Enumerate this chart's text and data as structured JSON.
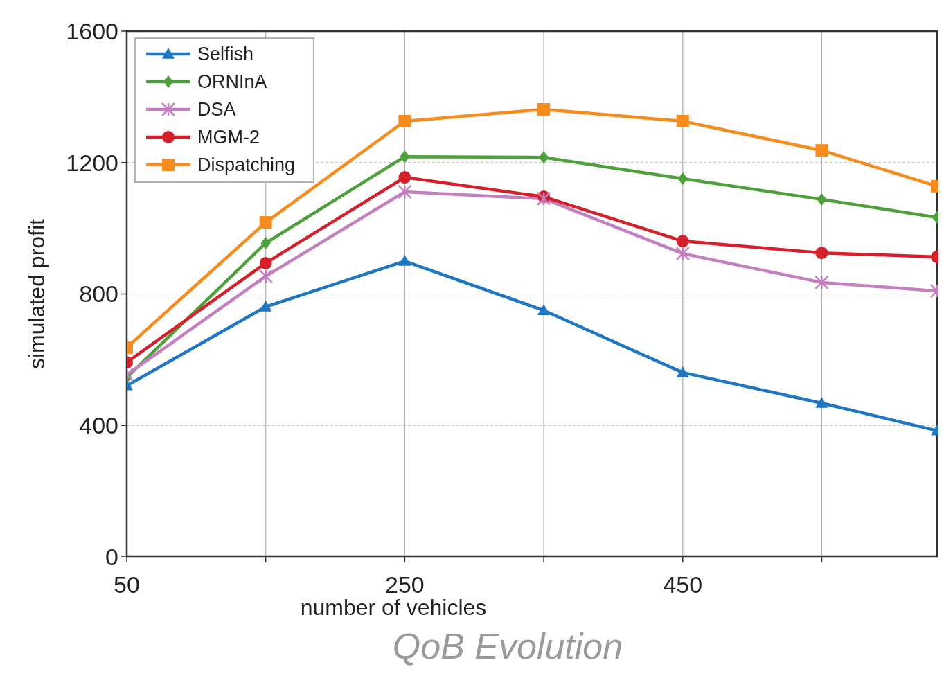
{
  "chart_data": {
    "type": "line",
    "xlabel": "number of vehicles",
    "ylabel": "simulated profit",
    "annotations": [
      "QoB Evolution"
    ],
    "xlim": [
      50,
      633
    ],
    "xticks": [
      50,
      {
        "value": 150,
        "label": null
      },
      250,
      {
        "value": 350,
        "label": null
      },
      450,
      {
        "value": 550,
        "label": null
      }
    ],
    "ylim": [
      0,
      1600
    ],
    "yticks": [
      0,
      400,
      800,
      1200,
      1600
    ],
    "grid": true,
    "legend": "top left",
    "x": [
      50,
      150,
      250,
      350,
      450,
      550,
      633
    ],
    "series": [
      {
        "name": "Selfish",
        "color": "#1f77c4",
        "marker": "triangle",
        "values": [
          521,
          761,
          900,
          750,
          561,
          468,
          384
        ]
      },
      {
        "name": "ORNInA",
        "color": "#4ea03c",
        "marker": "diamond",
        "values": [
          546,
          955,
          1218,
          1216,
          1151,
          1088,
          1033
        ]
      },
      {
        "name": "DSA",
        "color": "#c47fc0",
        "marker": "cross",
        "values": [
          554,
          854,
          1111,
          1090,
          923,
          835,
          809
        ]
      },
      {
        "name": "MGM-2",
        "color": "#d4202a",
        "marker": "circle",
        "values": [
          592,
          894,
          1155,
          1096,
          961,
          925,
          913
        ]
      },
      {
        "name": "Dispatching",
        "color": "#f78c1e",
        "marker": "square",
        "values": [
          637,
          1018,
          1326,
          1362,
          1326,
          1237,
          1128
        ]
      }
    ]
  }
}
